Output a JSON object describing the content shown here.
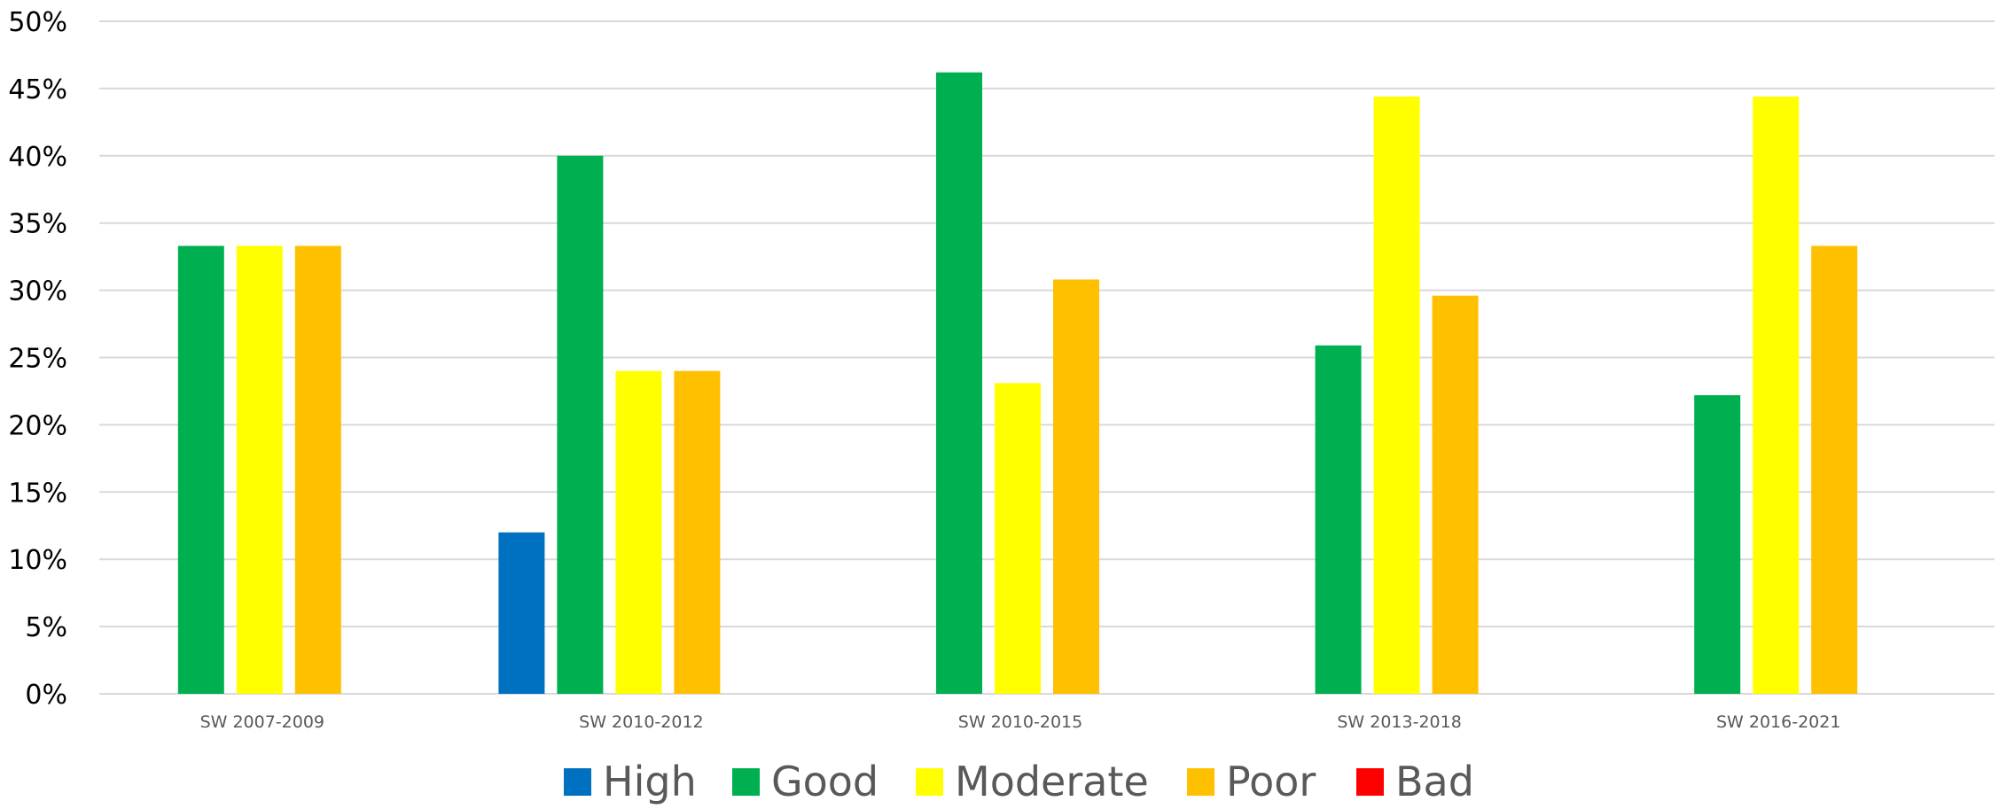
{
  "chart_data": {
    "type": "bar",
    "title": "",
    "xlabel": "",
    "ylabel": "",
    "categories": [
      "SW 2007-2009",
      "SW 2010-2012",
      "SW 2010-2015",
      "SW 2013-2018",
      "SW 2016-2021"
    ],
    "series": [
      {
        "name": "High",
        "color": "#0070c0",
        "values": [
          0,
          12,
          0,
          0,
          0
        ]
      },
      {
        "name": "Good",
        "color": "#00b050",
        "values": [
          33.3,
          40,
          46.2,
          25.9,
          22.2
        ]
      },
      {
        "name": "Moderate",
        "color": "#ffff00",
        "values": [
          33.3,
          24,
          23.1,
          44.4,
          44.4
        ]
      },
      {
        "name": "Poor",
        "color": "#ffc000",
        "values": [
          33.3,
          24,
          30.8,
          29.6,
          33.3
        ]
      },
      {
        "name": "Bad",
        "color": "#ff0000",
        "values": [
          0,
          0,
          0,
          0,
          0
        ]
      }
    ],
    "ylim": [
      0,
      50
    ],
    "yticks": [
      0,
      5,
      10,
      15,
      20,
      25,
      30,
      35,
      40,
      45,
      50
    ],
    "ytick_labels": [
      "0%",
      "5%",
      "10%",
      "15%",
      "20%",
      "25%",
      "30%",
      "35%",
      "40%",
      "45%",
      "50%"
    ],
    "grid": true,
    "legend_position": "bottom"
  }
}
